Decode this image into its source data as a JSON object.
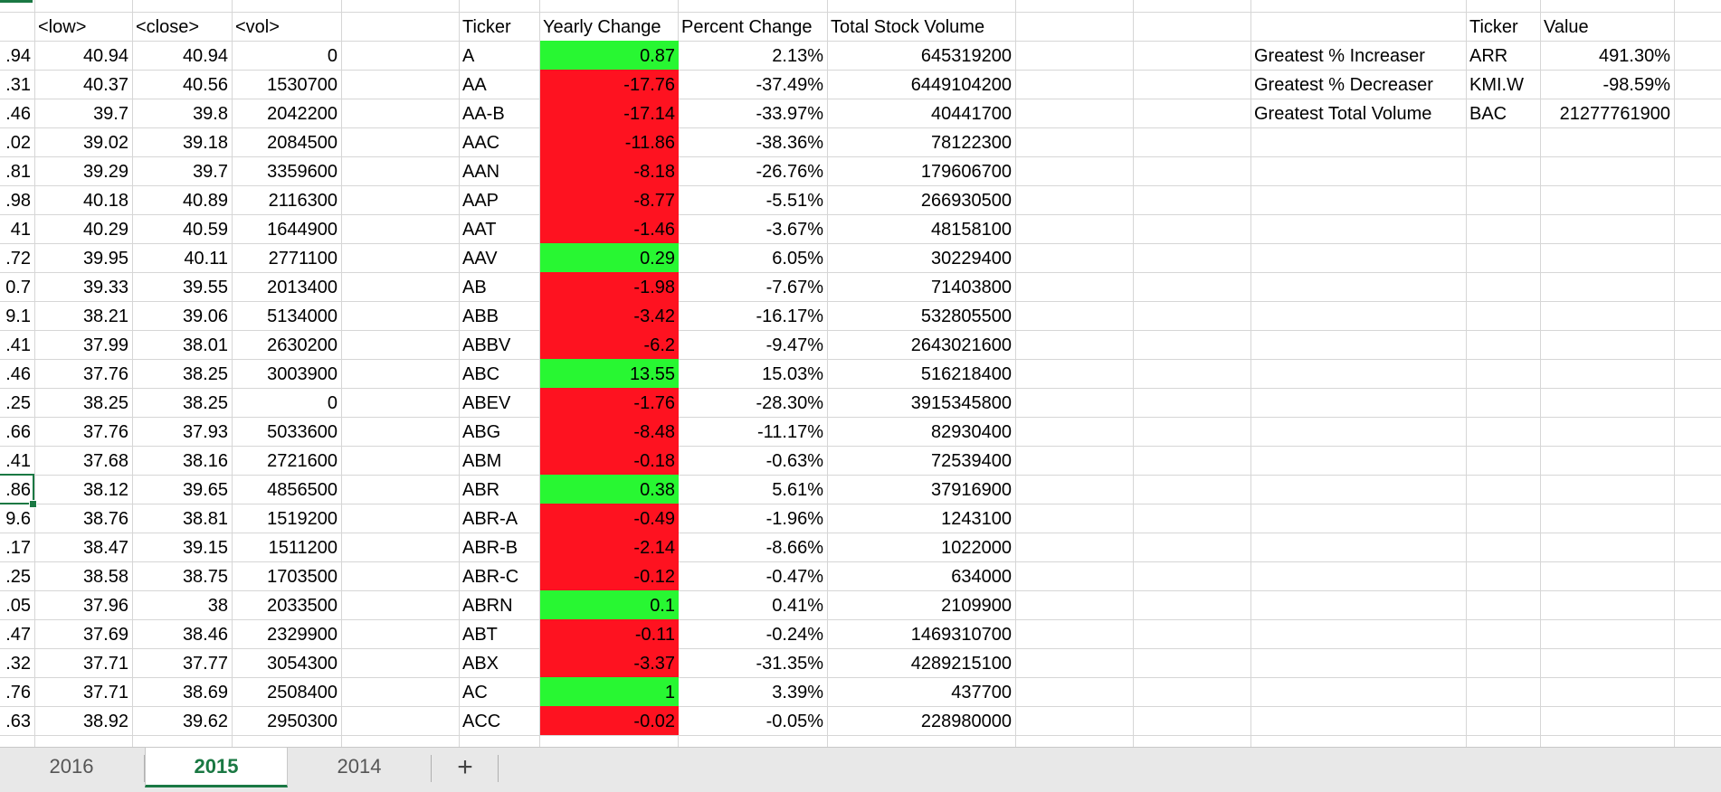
{
  "columns": {
    "low": "<low>",
    "close": "<close>",
    "vol": "<vol>",
    "ticker": "Ticker",
    "yearly_change": "Yearly Change",
    "percent_change": "Percent Change",
    "total_volume": "Total Stock Volume"
  },
  "colors": {
    "positive": "#28f732",
    "negative": "#fe1220",
    "accent": "#1a7843"
  },
  "rows": [
    {
      "partial": ".94",
      "low": "40.94",
      "close": "40.94",
      "vol": "0",
      "ticker": "A",
      "change": "0.87",
      "pct": "2.13%",
      "volume": "645319200",
      "dir": "pos"
    },
    {
      "partial": ".31",
      "low": "40.37",
      "close": "40.56",
      "vol": "1530700",
      "ticker": "AA",
      "change": "-17.76",
      "pct": "-37.49%",
      "volume": "6449104200",
      "dir": "neg"
    },
    {
      "partial": ".46",
      "low": "39.7",
      "close": "39.8",
      "vol": "2042200",
      "ticker": "AA-B",
      "change": "-17.14",
      "pct": "-33.97%",
      "volume": "40441700",
      "dir": "neg"
    },
    {
      "partial": ".02",
      "low": "39.02",
      "close": "39.18",
      "vol": "2084500",
      "ticker": "AAC",
      "change": "-11.86",
      "pct": "-38.36%",
      "volume": "78122300",
      "dir": "neg"
    },
    {
      "partial": ".81",
      "low": "39.29",
      "close": "39.7",
      "vol": "3359600",
      "ticker": "AAN",
      "change": "-8.18",
      "pct": "-26.76%",
      "volume": "179606700",
      "dir": "neg"
    },
    {
      "partial": ".98",
      "low": "40.18",
      "close": "40.89",
      "vol": "2116300",
      "ticker": "AAP",
      "change": "-8.77",
      "pct": "-5.51%",
      "volume": "266930500",
      "dir": "neg"
    },
    {
      "partial": "41",
      "low": "40.29",
      "close": "40.59",
      "vol": "1644900",
      "ticker": "AAT",
      "change": "-1.46",
      "pct": "-3.67%",
      "volume": "48158100",
      "dir": "neg"
    },
    {
      "partial": ".72",
      "low": "39.95",
      "close": "40.11",
      "vol": "2771100",
      "ticker": "AAV",
      "change": "0.29",
      "pct": "6.05%",
      "volume": "30229400",
      "dir": "pos"
    },
    {
      "partial": "0.7",
      "low": "39.33",
      "close": "39.55",
      "vol": "2013400",
      "ticker": "AB",
      "change": "-1.98",
      "pct": "-7.67%",
      "volume": "71403800",
      "dir": "neg"
    },
    {
      "partial": "9.1",
      "low": "38.21",
      "close": "39.06",
      "vol": "5134000",
      "ticker": "ABB",
      "change": "-3.42",
      "pct": "-16.17%",
      "volume": "532805500",
      "dir": "neg"
    },
    {
      "partial": ".41",
      "low": "37.99",
      "close": "38.01",
      "vol": "2630200",
      "ticker": "ABBV",
      "change": "-6.2",
      "pct": "-9.47%",
      "volume": "2643021600",
      "dir": "neg"
    },
    {
      "partial": ".46",
      "low": "37.76",
      "close": "38.25",
      "vol": "3003900",
      "ticker": "ABC",
      "change": "13.55",
      "pct": "15.03%",
      "volume": "516218400",
      "dir": "pos"
    },
    {
      "partial": ".25",
      "low": "38.25",
      "close": "38.25",
      "vol": "0",
      "ticker": "ABEV",
      "change": "-1.76",
      "pct": "-28.30%",
      "volume": "3915345800",
      "dir": "neg"
    },
    {
      "partial": ".66",
      "low": "37.76",
      "close": "37.93",
      "vol": "5033600",
      "ticker": "ABG",
      "change": "-8.48",
      "pct": "-11.17%",
      "volume": "82930400",
      "dir": "neg"
    },
    {
      "partial": ".41",
      "low": "37.68",
      "close": "38.16",
      "vol": "2721600",
      "ticker": "ABM",
      "change": "-0.18",
      "pct": "-0.63%",
      "volume": "72539400",
      "dir": "neg"
    },
    {
      "partial": ".86",
      "low": "38.12",
      "close": "39.65",
      "vol": "4856500",
      "ticker": "ABR",
      "change": "0.38",
      "pct": "5.61%",
      "volume": "37916900",
      "dir": "pos"
    },
    {
      "partial": "9.6",
      "low": "38.76",
      "close": "38.81",
      "vol": "1519200",
      "ticker": "ABR-A",
      "change": "-0.49",
      "pct": "-1.96%",
      "volume": "1243100",
      "dir": "neg"
    },
    {
      "partial": ".17",
      "low": "38.47",
      "close": "39.15",
      "vol": "1511200",
      "ticker": "ABR-B",
      "change": "-2.14",
      "pct": "-8.66%",
      "volume": "1022000",
      "dir": "neg"
    },
    {
      "partial": ".25",
      "low": "38.58",
      "close": "38.75",
      "vol": "1703500",
      "ticker": "ABR-C",
      "change": "-0.12",
      "pct": "-0.47%",
      "volume": "634000",
      "dir": "neg"
    },
    {
      "partial": ".05",
      "low": "37.96",
      "close": "38",
      "vol": "2033500",
      "ticker": "ABRN",
      "change": "0.1",
      "pct": "0.41%",
      "volume": "2109900",
      "dir": "pos"
    },
    {
      "partial": ".47",
      "low": "37.69",
      "close": "38.46",
      "vol": "2329900",
      "ticker": "ABT",
      "change": "-0.11",
      "pct": "-0.24%",
      "volume": "1469310700",
      "dir": "neg"
    },
    {
      "partial": ".32",
      "low": "37.71",
      "close": "37.77",
      "vol": "3054300",
      "ticker": "ABX",
      "change": "-3.37",
      "pct": "-31.35%",
      "volume": "4289215100",
      "dir": "neg"
    },
    {
      "partial": ".76",
      "low": "37.71",
      "close": "38.69",
      "vol": "2508400",
      "ticker": "AC",
      "change": "1",
      "pct": "3.39%",
      "volume": "437700",
      "dir": "pos"
    },
    {
      "partial": ".63",
      "low": "38.92",
      "close": "39.62",
      "vol": "2950300",
      "ticker": "ACC",
      "change": "-0.02",
      "pct": "-0.05%",
      "volume": "228980000",
      "dir": "neg"
    }
  ],
  "summary": {
    "headers": {
      "ticker": "Ticker",
      "value": "Value"
    },
    "rows": [
      {
        "label": "Greatest % Increaser",
        "ticker": "ARR",
        "value": "491.30%"
      },
      {
        "label": "Greatest % Decreaser",
        "ticker": "KMI.W",
        "value": "-98.59%"
      },
      {
        "label": "Greatest Total Volume",
        "ticker": "BAC",
        "value": "21277761900"
      }
    ]
  },
  "sheet_tabs": [
    {
      "label": "2016",
      "active": false
    },
    {
      "label": "2015",
      "active": true
    },
    {
      "label": "2014",
      "active": false
    }
  ],
  "add_sheet_label": "+"
}
